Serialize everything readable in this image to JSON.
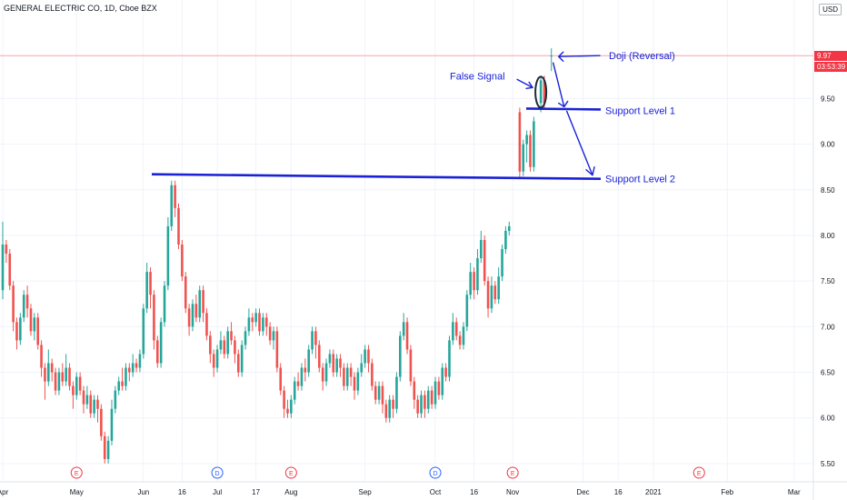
{
  "header": {
    "symbol_title": "GENERAL ELECTRIC CO, 1D, Cboe BZX",
    "currency_button": "USD",
    "top_axis_partial": "1"
  },
  "price_tags": {
    "last_price": "9.97",
    "countdown": "03:53:39"
  },
  "colors": {
    "up": "#26a69a",
    "down": "#ef5350",
    "annotation": "#1a22d6",
    "grid": "#f0f3fa",
    "axis_text": "#131722",
    "last_price_line": "#f23645"
  },
  "event_badges": [
    "E",
    "D",
    "E",
    "D",
    "E",
    "E"
  ],
  "annotations": {
    "false_signal": "False Signal",
    "doji": "Doji (Reversal)",
    "support1": "Support Level 1",
    "support2": "Support Level 2"
  },
  "chart_data": {
    "type": "candlestick",
    "title": "GENERAL ELECTRIC CO, 1D, Cboe BZX",
    "y_ticks": [
      "5.50",
      "6.00",
      "6.50",
      "7.00",
      "7.50",
      "8.00",
      "8.50",
      "9.00",
      "9.50"
    ],
    "ylim": [
      5.3,
      10.5
    ],
    "x_ticks": [
      {
        "label": "Apr",
        "i": 0
      },
      {
        "label": "May",
        "i": 21
      },
      {
        "label": "Jun",
        "i": 40
      },
      {
        "label": "16",
        "i": 51
      },
      {
        "label": "Jul",
        "i": 61
      },
      {
        "label": "17",
        "i": 72
      },
      {
        "label": "Aug",
        "i": 82
      },
      {
        "label": "Sep",
        "i": 103
      },
      {
        "label": "Oct",
        "i": 123
      },
      {
        "label": "16",
        "i": 134
      },
      {
        "label": "Nov",
        "i": 145
      },
      {
        "label": "Dec",
        "i": 165
      },
      {
        "label": "16",
        "i": 175
      },
      {
        "label": "2021",
        "i": 185
      },
      {
        "label": "Feb",
        "i": 206
      },
      {
        "label": "Mar",
        "i": 225
      }
    ],
    "support_levels": [
      9.38,
      8.62
    ],
    "last_price": 9.97,
    "candles": [
      [
        7.4,
        7.9,
        8.15,
        7.3
      ],
      [
        7.9,
        7.8,
        7.95,
        7.7
      ],
      [
        7.8,
        7.45,
        7.85,
        7.4
      ],
      [
        7.45,
        7.05,
        7.5,
        6.95
      ],
      [
        7.05,
        6.85,
        7.1,
        6.75
      ],
      [
        6.85,
        7.1,
        7.15,
        6.8
      ],
      [
        7.1,
        7.35,
        7.4,
        7.05
      ],
      [
        7.35,
        7.2,
        7.45,
        7.1
      ],
      [
        7.2,
        6.95,
        7.25,
        6.9
      ],
      [
        6.95,
        7.1,
        7.15,
        6.85
      ],
      [
        7.1,
        6.8,
        7.15,
        6.75
      ],
      [
        6.8,
        6.55,
        6.85,
        6.45
      ],
      [
        6.55,
        6.4,
        6.6,
        6.2
      ],
      [
        6.4,
        6.6,
        6.75,
        6.35
      ],
      [
        6.6,
        6.5,
        6.65,
        6.4
      ],
      [
        6.5,
        6.3,
        6.55,
        6.25
      ],
      [
        6.3,
        6.5,
        6.55,
        6.25
      ],
      [
        6.5,
        6.4,
        6.6,
        6.35
      ],
      [
        6.4,
        6.55,
        6.7,
        6.35
      ],
      [
        6.55,
        6.35,
        6.6,
        6.3
      ],
      [
        6.35,
        6.25,
        6.4,
        6.1
      ],
      [
        6.25,
        6.45,
        6.5,
        6.2
      ],
      [
        6.45,
        6.3,
        6.5,
        6.25
      ],
      [
        6.3,
        6.15,
        6.35,
        6.05
      ],
      [
        6.15,
        6.25,
        6.35,
        6.1
      ],
      [
        6.25,
        6.05,
        6.3,
        6.0
      ],
      [
        6.05,
        6.2,
        6.25,
        6.0
      ],
      [
        6.2,
        6.1,
        6.25,
        5.95
      ],
      [
        6.1,
        5.8,
        6.15,
        5.75
      ],
      [
        5.8,
        5.55,
        5.85,
        5.5
      ],
      [
        5.55,
        5.75,
        5.8,
        5.5
      ],
      [
        5.75,
        6.1,
        6.2,
        5.7
      ],
      [
        6.1,
        6.3,
        6.35,
        6.05
      ],
      [
        6.3,
        6.4,
        6.45,
        6.25
      ],
      [
        6.4,
        6.35,
        6.55,
        6.3
      ],
      [
        6.35,
        6.55,
        6.6,
        6.3
      ],
      [
        6.55,
        6.5,
        6.6,
        6.4
      ],
      [
        6.5,
        6.6,
        6.7,
        6.45
      ],
      [
        6.6,
        6.55,
        6.65,
        6.5
      ],
      [
        6.55,
        6.7,
        6.75,
        6.5
      ],
      [
        6.7,
        7.2,
        7.25,
        6.65
      ],
      [
        7.2,
        7.6,
        7.7,
        7.15
      ],
      [
        7.6,
        7.35,
        7.65,
        7.2
      ],
      [
        7.35,
        6.85,
        7.4,
        6.75
      ],
      [
        6.85,
        6.6,
        6.9,
        6.55
      ],
      [
        6.6,
        7.05,
        7.1,
        6.55
      ],
      [
        7.05,
        7.45,
        7.5,
        7.0
      ],
      [
        7.45,
        8.1,
        8.2,
        7.4
      ],
      [
        8.1,
        8.55,
        8.6,
        8.05
      ],
      [
        8.55,
        8.3,
        8.6,
        8.2
      ],
      [
        8.3,
        7.9,
        8.35,
        7.85
      ],
      [
        7.9,
        7.55,
        7.95,
        7.5
      ],
      [
        7.55,
        7.2,
        7.6,
        7.15
      ],
      [
        7.2,
        7.0,
        7.25,
        6.9
      ],
      [
        7.0,
        7.25,
        7.3,
        6.95
      ],
      [
        7.25,
        7.1,
        7.35,
        7.05
      ],
      [
        7.1,
        7.4,
        7.45,
        7.05
      ],
      [
        7.4,
        7.15,
        7.45,
        7.05
      ],
      [
        7.15,
        6.9,
        7.2,
        6.85
      ],
      [
        6.9,
        6.7,
        6.95,
        6.6
      ],
      [
        6.7,
        6.55,
        6.75,
        6.45
      ],
      [
        6.55,
        6.75,
        6.8,
        6.5
      ],
      [
        6.75,
        6.85,
        6.95,
        6.7
      ],
      [
        6.85,
        6.7,
        6.9,
        6.65
      ],
      [
        6.7,
        6.95,
        7.0,
        6.65
      ],
      [
        6.95,
        6.85,
        7.05,
        6.8
      ],
      [
        6.85,
        6.7,
        6.9,
        6.6
      ],
      [
        6.7,
        6.5,
        6.75,
        6.45
      ],
      [
        6.5,
        6.8,
        6.85,
        6.45
      ],
      [
        6.8,
        6.95,
        7.0,
        6.75
      ],
      [
        6.95,
        7.1,
        7.2,
        6.9
      ],
      [
        7.1,
        7.05,
        7.15,
        6.95
      ],
      [
        7.05,
        7.15,
        7.2,
        7.0
      ],
      [
        7.15,
        6.95,
        7.2,
        6.9
      ],
      [
        6.95,
        7.1,
        7.15,
        6.9
      ],
      [
        7.1,
        7.0,
        7.15,
        6.9
      ],
      [
        7.0,
        6.85,
        7.05,
        6.8
      ],
      [
        6.85,
        6.95,
        7.0,
        6.75
      ],
      [
        6.95,
        6.55,
        7.0,
        6.5
      ],
      [
        6.55,
        6.3,
        6.6,
        6.25
      ],
      [
        6.3,
        6.1,
        6.35,
        6.0
      ],
      [
        6.1,
        6.05,
        6.2,
        6.0
      ],
      [
        6.05,
        6.2,
        6.25,
        6.0
      ],
      [
        6.2,
        6.4,
        6.45,
        6.15
      ],
      [
        6.4,
        6.35,
        6.5,
        6.3
      ],
      [
        6.35,
        6.55,
        6.6,
        6.3
      ],
      [
        6.55,
        6.5,
        6.65,
        6.4
      ],
      [
        6.5,
        6.75,
        6.8,
        6.45
      ],
      [
        6.75,
        6.95,
        7.0,
        6.7
      ],
      [
        6.95,
        6.8,
        7.0,
        6.65
      ],
      [
        6.8,
        6.55,
        6.85,
        6.5
      ],
      [
        6.55,
        6.4,
        6.6,
        6.3
      ],
      [
        6.4,
        6.6,
        6.65,
        6.35
      ],
      [
        6.6,
        6.7,
        6.75,
        6.55
      ],
      [
        6.7,
        6.5,
        6.75,
        6.45
      ],
      [
        6.5,
        6.65,
        6.7,
        6.45
      ],
      [
        6.65,
        6.55,
        6.7,
        6.45
      ],
      [
        6.55,
        6.35,
        6.6,
        6.3
      ],
      [
        6.35,
        6.55,
        6.6,
        6.3
      ],
      [
        6.55,
        6.45,
        6.6,
        6.35
      ],
      [
        6.45,
        6.3,
        6.5,
        6.2
      ],
      [
        6.3,
        6.5,
        6.55,
        6.25
      ],
      [
        6.5,
        6.6,
        6.7,
        6.45
      ],
      [
        6.6,
        6.75,
        6.8,
        6.55
      ],
      [
        6.75,
        6.6,
        6.8,
        6.5
      ],
      [
        6.6,
        6.35,
        6.65,
        6.3
      ],
      [
        6.35,
        6.2,
        6.4,
        6.15
      ],
      [
        6.2,
        6.35,
        6.4,
        6.15
      ],
      [
        6.35,
        6.15,
        6.4,
        6.05
      ],
      [
        6.15,
        6.0,
        6.2,
        5.95
      ],
      [
        6.0,
        6.2,
        6.25,
        5.95
      ],
      [
        6.2,
        6.1,
        6.25,
        6.0
      ],
      [
        6.1,
        6.45,
        6.5,
        6.05
      ],
      [
        6.45,
        6.9,
        6.95,
        6.4
      ],
      [
        6.9,
        7.05,
        7.15,
        6.85
      ],
      [
        7.05,
        6.75,
        7.1,
        6.7
      ],
      [
        6.75,
        6.4,
        6.8,
        6.35
      ],
      [
        6.4,
        6.2,
        6.45,
        6.1
      ],
      [
        6.2,
        6.05,
        6.25,
        6.0
      ],
      [
        6.05,
        6.25,
        6.3,
        6.0
      ],
      [
        6.25,
        6.1,
        6.3,
        6.0
      ],
      [
        6.1,
        6.3,
        6.35,
        6.05
      ],
      [
        6.3,
        6.15,
        6.35,
        6.1
      ],
      [
        6.15,
        6.4,
        6.45,
        6.1
      ],
      [
        6.4,
        6.25,
        6.45,
        6.2
      ],
      [
        6.25,
        6.55,
        6.6,
        6.2
      ],
      [
        6.55,
        6.45,
        6.6,
        6.4
      ],
      [
        6.45,
        6.85,
        6.9,
        6.4
      ],
      [
        6.85,
        7.05,
        7.15,
        6.8
      ],
      [
        7.05,
        6.9,
        7.1,
        6.85
      ],
      [
        6.9,
        6.8,
        6.95,
        6.75
      ],
      [
        6.8,
        7.0,
        7.05,
        6.75
      ],
      [
        7.0,
        7.35,
        7.4,
        6.95
      ],
      [
        7.35,
        7.6,
        7.7,
        7.3
      ],
      [
        7.6,
        7.4,
        7.65,
        7.3
      ],
      [
        7.4,
        7.75,
        7.85,
        7.35
      ],
      [
        7.75,
        7.95,
        8.05,
        7.7
      ],
      [
        7.95,
        7.5,
        8.0,
        7.45
      ],
      [
        7.5,
        7.2,
        7.55,
        7.1
      ],
      [
        7.2,
        7.45,
        7.55,
        7.15
      ],
      [
        7.45,
        7.3,
        7.5,
        7.25
      ],
      [
        7.3,
        7.55,
        7.65,
        7.25
      ],
      [
        7.55,
        7.85,
        7.9,
        7.5
      ],
      [
        7.85,
        8.05,
        8.1,
        7.8
      ],
      [
        8.05,
        8.1,
        8.15,
        8.0
      ],
      [
        null,
        null,
        null,
        null
      ],
      [
        null,
        null,
        null,
        null
      ],
      [
        9.35,
        8.7,
        9.4,
        8.62
      ],
      [
        8.7,
        9.0,
        9.05,
        8.65
      ],
      [
        9.0,
        9.1,
        9.15,
        8.8
      ],
      [
        9.1,
        8.75,
        9.15,
        8.7
      ],
      [
        8.75,
        9.25,
        9.3,
        8.7
      ],
      [
        null,
        null,
        null,
        null
      ],
      [
        9.45,
        9.7,
        9.75,
        9.35
      ],
      [
        9.7,
        9.45,
        9.75,
        9.4
      ],
      [
        null,
        null,
        null,
        null
      ],
      [
        9.97,
        9.97,
        10.05,
        9.8
      ]
    ]
  }
}
